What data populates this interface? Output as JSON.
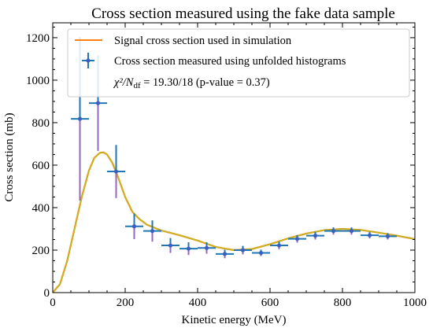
{
  "chart_data": {
    "type": "line",
    "title": "Cross section measured using the fake data sample",
    "xlabel": "Kinetic energy (MeV)",
    "ylabel": "Cross section (mb)",
    "xlim": [
      0,
      1000
    ],
    "ylim": [
      0,
      1270
    ],
    "xticks": [
      0,
      200,
      400,
      600,
      800,
      1000
    ],
    "yticks": [
      0,
      200,
      400,
      600,
      800,
      1000,
      1200
    ],
    "grid": false,
    "legend_position": "top",
    "legend": {
      "signal_label": "Signal cross section used in simulation",
      "measured_label": "Cross section measured using unfolded histograms",
      "chi2_label": "χ²/N",
      "chi2_subscript": "df",
      "chi2_value": " = 19.30/18 (p-value = 0.37)"
    },
    "colors": {
      "signal_line": "#ff7f0e",
      "overlay_line": "#bcbd22",
      "measured_points": "#1f77b4",
      "measured_markers": "#3b5fc0",
      "purple_error": "#9467bd",
      "pink_error": "#e377c2"
    },
    "signal_curve": {
      "name": "Signal cross section used in simulation",
      "x": [
        0,
        20,
        40,
        60,
        80,
        100,
        115,
        130,
        140,
        150,
        165,
        180,
        200,
        220,
        240,
        260,
        300,
        350,
        400,
        450,
        500,
        550,
        600,
        650,
        700,
        750,
        800,
        850,
        900,
        950,
        1000
      ],
      "y": [
        0,
        40,
        150,
        300,
        450,
        575,
        635,
        658,
        660,
        650,
        610,
        545,
        450,
        380,
        345,
        320,
        292,
        270,
        245,
        215,
        200,
        205,
        228,
        255,
        278,
        294,
        300,
        295,
        282,
        268,
        252
      ]
    },
    "measured": {
      "name": "Cross section measured using unfolded histograms",
      "x": [
        75,
        125,
        175,
        225,
        275,
        325,
        375,
        425,
        475,
        525,
        575,
        625,
        675,
        725,
        775,
        825,
        875,
        925
      ],
      "y": [
        818,
        892,
        570,
        312,
        290,
        222,
        207,
        210,
        182,
        200,
        187,
        222,
        253,
        268,
        290,
        290,
        270,
        265
      ],
      "xerr": [
        25,
        25,
        25,
        25,
        25,
        25,
        25,
        25,
        25,
        25,
        25,
        25,
        25,
        25,
        25,
        25,
        25,
        25
      ],
      "yerr": [
        385,
        225,
        125,
        60,
        50,
        35,
        30,
        27,
        20,
        20,
        15,
        18,
        18,
        18,
        17,
        17,
        15,
        15
      ]
    }
  }
}
